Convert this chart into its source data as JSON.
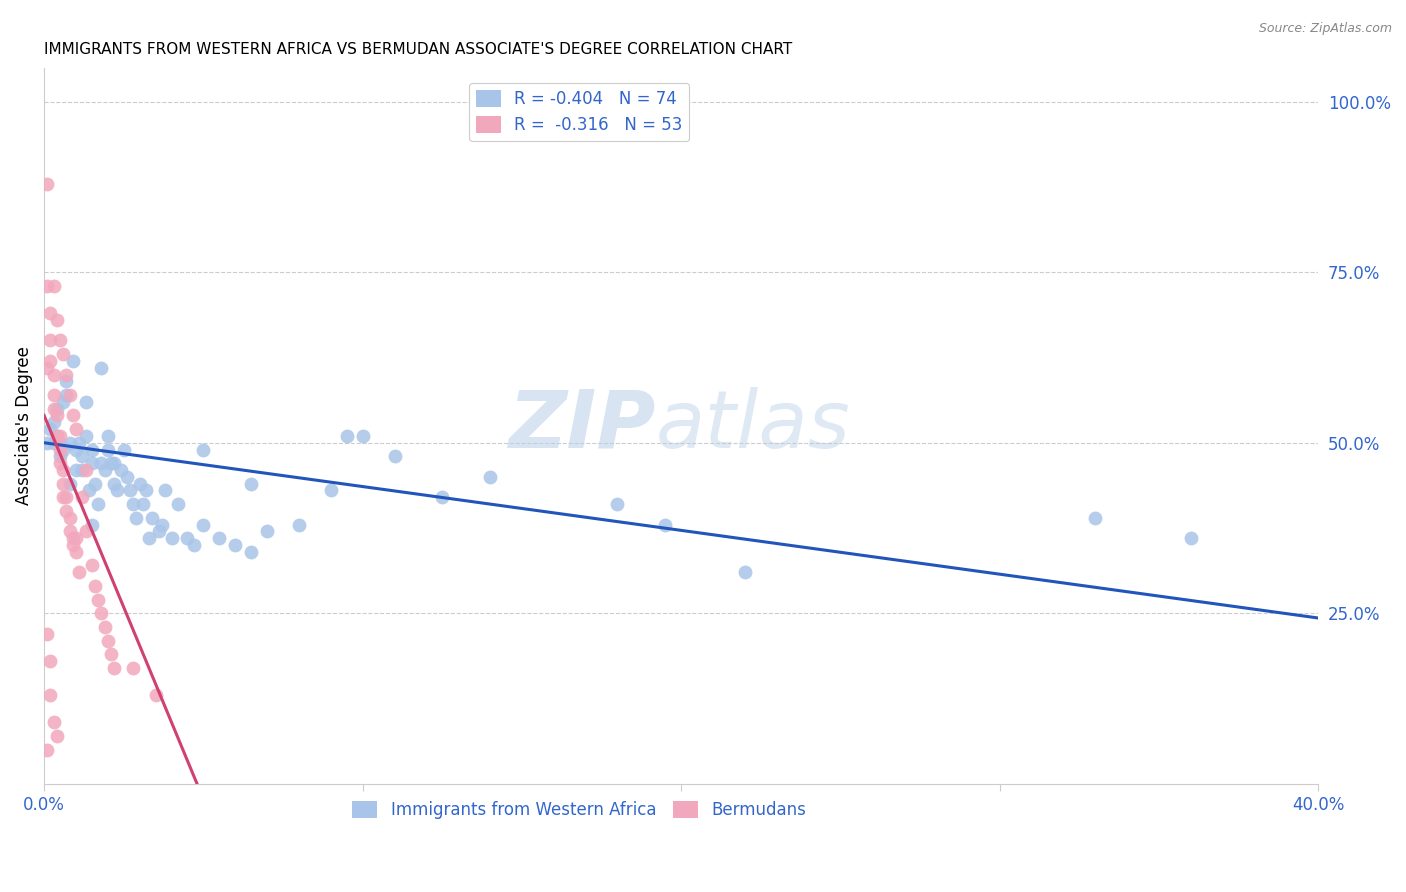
{
  "title": "IMMIGRANTS FROM WESTERN AFRICA VS BERMUDAN ASSOCIATE'S DEGREE CORRELATION CHART",
  "source": "Source: ZipAtlas.com",
  "ylabel": "Associate's Degree",
  "watermark_zip": "ZIP",
  "watermark_atlas": "atlas",
  "legend1_label": "Immigrants from Western Africa",
  "legend2_label": "Bermudans",
  "R1": -0.404,
  "N1": 74,
  "R2": -0.316,
  "N2": 53,
  "color_blue": "#a8c4e8",
  "color_pink": "#f2a8bc",
  "color_blue_line": "#2255bb",
  "color_pink_line": "#d04070",
  "color_blue_text": "#3366cc",
  "xlim": [
    0.0,
    0.4
  ],
  "ylim": [
    0.0,
    1.05
  ],
  "blue_x": [
    0.001,
    0.002,
    0.003,
    0.003,
    0.004,
    0.004,
    0.005,
    0.005,
    0.006,
    0.006,
    0.007,
    0.007,
    0.008,
    0.008,
    0.009,
    0.01,
    0.01,
    0.011,
    0.012,
    0.012,
    0.013,
    0.013,
    0.014,
    0.015,
    0.015,
    0.016,
    0.017,
    0.018,
    0.018,
    0.019,
    0.02,
    0.02,
    0.021,
    0.022,
    0.022,
    0.023,
    0.024,
    0.025,
    0.026,
    0.027,
    0.028,
    0.029,
    0.03,
    0.031,
    0.032,
    0.033,
    0.034,
    0.036,
    0.037,
    0.038,
    0.04,
    0.042,
    0.045,
    0.047,
    0.05,
    0.055,
    0.06,
    0.065,
    0.07,
    0.08,
    0.095,
    0.1,
    0.11,
    0.125,
    0.14,
    0.18,
    0.195,
    0.22,
    0.33,
    0.36,
    0.05,
    0.065,
    0.09,
    0.015
  ],
  "blue_y": [
    0.5,
    0.52,
    0.5,
    0.53,
    0.51,
    0.55,
    0.5,
    0.48,
    0.56,
    0.49,
    0.57,
    0.59,
    0.44,
    0.5,
    0.62,
    0.46,
    0.49,
    0.5,
    0.46,
    0.48,
    0.51,
    0.56,
    0.43,
    0.49,
    0.47,
    0.44,
    0.41,
    0.61,
    0.47,
    0.46,
    0.49,
    0.51,
    0.47,
    0.44,
    0.47,
    0.43,
    0.46,
    0.49,
    0.45,
    0.43,
    0.41,
    0.39,
    0.44,
    0.41,
    0.43,
    0.36,
    0.39,
    0.37,
    0.38,
    0.43,
    0.36,
    0.41,
    0.36,
    0.35,
    0.38,
    0.36,
    0.35,
    0.34,
    0.37,
    0.38,
    0.51,
    0.51,
    0.48,
    0.42,
    0.45,
    0.41,
    0.38,
    0.31,
    0.39,
    0.36,
    0.49,
    0.44,
    0.43,
    0.38
  ],
  "pink_x": [
    0.001,
    0.001,
    0.001,
    0.002,
    0.002,
    0.002,
    0.003,
    0.003,
    0.003,
    0.004,
    0.004,
    0.005,
    0.005,
    0.005,
    0.006,
    0.006,
    0.006,
    0.007,
    0.007,
    0.008,
    0.008,
    0.009,
    0.009,
    0.01,
    0.01,
    0.011,
    0.012,
    0.013,
    0.013,
    0.015,
    0.016,
    0.017,
    0.018,
    0.019,
    0.02,
    0.021,
    0.022,
    0.003,
    0.004,
    0.005,
    0.006,
    0.007,
    0.008,
    0.009,
    0.01,
    0.001,
    0.002,
    0.002,
    0.003,
    0.004,
    0.001,
    0.028,
    0.035
  ],
  "pink_y": [
    0.88,
    0.73,
    0.61,
    0.69,
    0.65,
    0.62,
    0.6,
    0.57,
    0.55,
    0.54,
    0.51,
    0.51,
    0.49,
    0.47,
    0.46,
    0.44,
    0.42,
    0.42,
    0.4,
    0.39,
    0.37,
    0.36,
    0.35,
    0.34,
    0.36,
    0.31,
    0.42,
    0.46,
    0.37,
    0.32,
    0.29,
    0.27,
    0.25,
    0.23,
    0.21,
    0.19,
    0.17,
    0.73,
    0.68,
    0.65,
    0.63,
    0.6,
    0.57,
    0.54,
    0.52,
    0.22,
    0.18,
    0.13,
    0.09,
    0.07,
    0.05,
    0.17,
    0.13
  ],
  "blue_line_x": [
    0.0,
    0.4
  ],
  "blue_line_y": [
    0.5,
    0.243
  ],
  "pink_line_x": [
    0.0,
    0.048
  ],
  "pink_line_y": [
    0.54,
    0.0
  ]
}
